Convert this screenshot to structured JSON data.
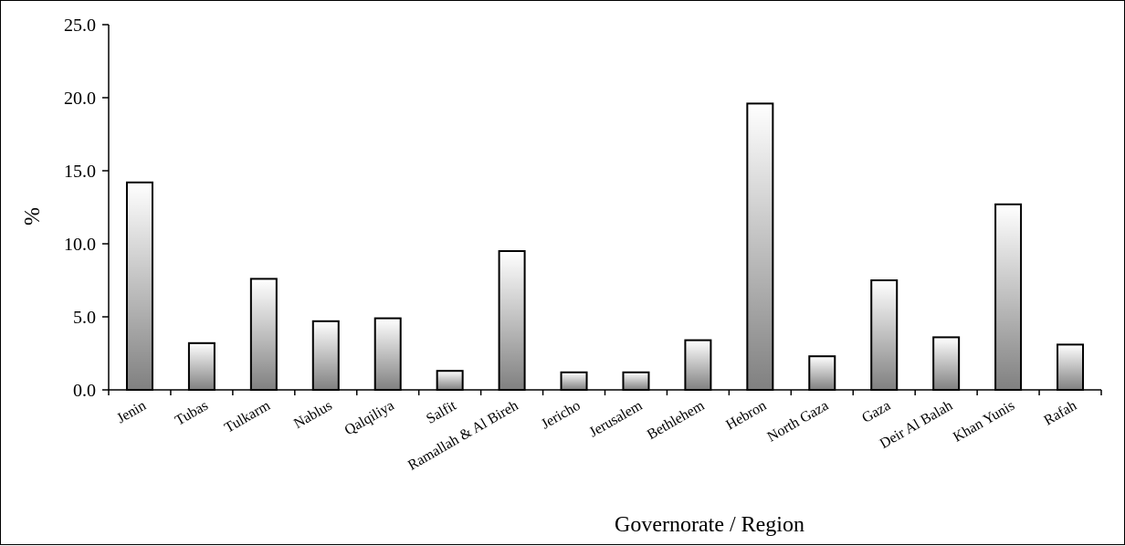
{
  "chart_data": {
    "type": "bar",
    "title": "",
    "xlabel": "Governorate / Region",
    "ylabel": "%",
    "ylim": [
      0,
      25
    ],
    "yticks": [
      "0.0",
      "5.0",
      "10.0",
      "15.0",
      "20.0",
      "25.0"
    ],
    "grid": false,
    "categories": [
      "Jenin",
      "Tubas",
      "Tulkarm",
      "Nablus",
      "Qalqiliya",
      "Salfit",
      "Ramallah & Al Bireh",
      "Jericho",
      "Jerusalem",
      "Bethlehem",
      "Hebron",
      "North Gaza",
      "Gaza",
      "Deir Al Balah",
      "Khan Yunis",
      "Rafah"
    ],
    "values": [
      14.2,
      3.2,
      7.6,
      4.7,
      4.9,
      1.3,
      9.5,
      1.2,
      1.2,
      3.4,
      19.6,
      2.3,
      7.5,
      3.6,
      12.7,
      3.1
    ],
    "bar_fill": "gradient #ffffff to #808080",
    "bar_stroke": "#000000"
  }
}
